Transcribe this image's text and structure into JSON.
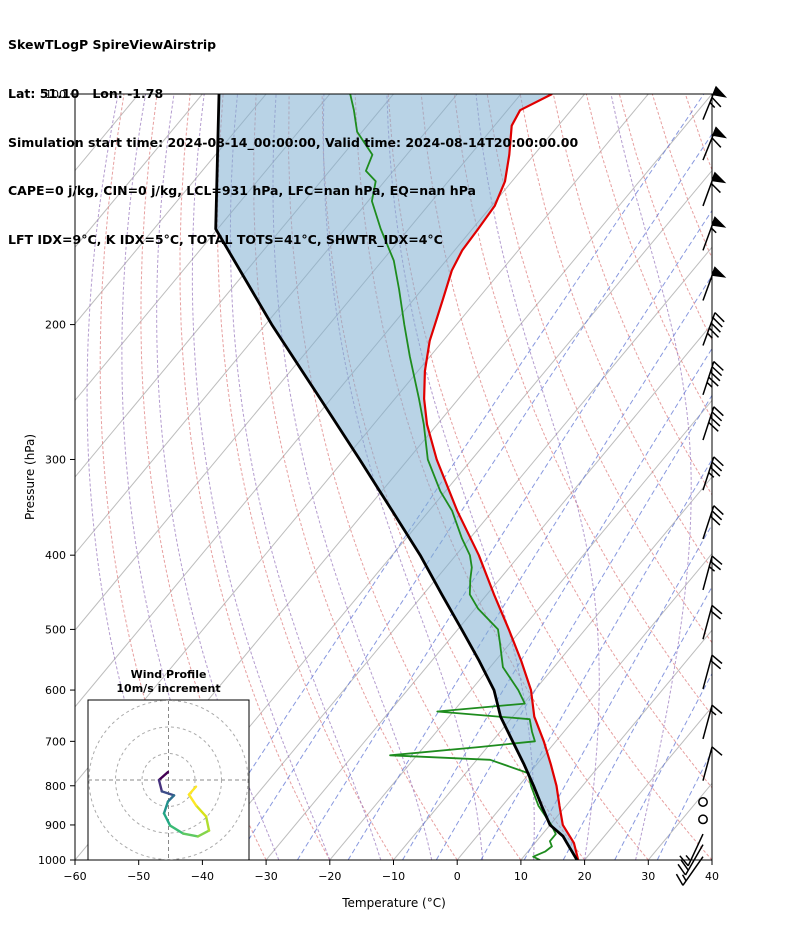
{
  "header": {
    "title": "SkewTLogP SpireViewAirstrip",
    "location": "Lat: 51.10   Lon: -1.78",
    "times": "Simulation start time: 2024-08-14_00:00:00, Valid time: 2024-08-14T20:00:00.00",
    "indices1": "CAPE=0 j/kg, CIN=0 j/kg, LCL=931 hPa, LFC=nan hPa, EQ=nan hPa",
    "indices2": "LFT IDX=9°C, K IDX=5°C, TOTAL TOTS=41°C, SHWTR_IDX=4°C"
  },
  "chart_data": {
    "type": "skewt-logp",
    "xlabel": "Temperature (°C)",
    "ylabel": "Pressure (hPa)",
    "xlim": [
      -60,
      40
    ],
    "pressure_lim": [
      100,
      1000
    ],
    "x_ticks": [
      -60,
      -50,
      -40,
      -30,
      -20,
      -10,
      0,
      10,
      20,
      30,
      40
    ],
    "p_ticks": [
      100,
      200,
      300,
      400,
      500,
      600,
      700,
      800,
      900,
      1000
    ],
    "skew": "45deg",
    "background": {
      "isotherm_color": "#bdbdbd",
      "isotherm_range": [
        -160,
        40
      ],
      "isotherm_step": 10,
      "dry_adiabat_color": "#df8080",
      "dry_adiabat_theta_c": [
        -40,
        180,
        10
      ],
      "moist_adiabat_color": "#9b7bbf",
      "moist_adiabat_t1000_c": [
        -44,
        -36,
        -28,
        -20,
        -12,
        -4,
        4,
        12,
        20,
        28
      ],
      "mixing_ratio_color": "#6b7fd7",
      "mixing_ratio_g_kg": [
        0.1,
        0.2,
        0.5,
        1,
        2,
        3,
        5,
        8,
        12,
        20,
        30
      ]
    },
    "series": {
      "temperature": {
        "name": "temperature",
        "color": "#e00000",
        "points": [
          [
            1000,
            19.0
          ],
          [
            950,
            16.1
          ],
          [
            900,
            12.0
          ],
          [
            850,
            9.0
          ],
          [
            800,
            5.9
          ],
          [
            750,
            2.2
          ],
          [
            700,
            -1.9
          ],
          [
            650,
            -6.6
          ],
          [
            600,
            -10.6
          ],
          [
            550,
            -15.9
          ],
          [
            500,
            -22.0
          ],
          [
            450,
            -28.9
          ],
          [
            400,
            -36.4
          ],
          [
            350,
            -45.6
          ],
          [
            300,
            -55.5
          ],
          [
            270,
            -61.6
          ],
          [
            250,
            -65.4
          ],
          [
            230,
            -68.9
          ],
          [
            210,
            -72.1
          ],
          [
            200,
            -73.4
          ],
          [
            185,
            -75.5
          ],
          [
            170,
            -77.8
          ],
          [
            160,
            -78.8
          ],
          [
            150,
            -79.1
          ],
          [
            140,
            -79.5
          ],
          [
            130,
            -81.1
          ],
          [
            120,
            -83.9
          ],
          [
            110,
            -87.3
          ],
          [
            105,
            -88.0
          ],
          [
            100,
            -85.1
          ]
        ]
      },
      "dewpoint": {
        "name": "dewpoint",
        "color": "#1e8c1e",
        "points": [
          [
            1000,
            13.0
          ],
          [
            990,
            11.5
          ],
          [
            975,
            12.7
          ],
          [
            960,
            13.1
          ],
          [
            945,
            12.1
          ],
          [
            925,
            12.1
          ],
          [
            900,
            10.2
          ],
          [
            850,
            5.7
          ],
          [
            800,
            1.9
          ],
          [
            770,
            -0.2
          ],
          [
            740,
            -7.9
          ],
          [
            730,
            -24.2
          ],
          [
            712,
            -11.2
          ],
          [
            700,
            -3.3
          ],
          [
            680,
            -5.0
          ],
          [
            655,
            -7.0
          ],
          [
            640,
            -22.5
          ],
          [
            625,
            -9.8
          ],
          [
            600,
            -12.6
          ],
          [
            560,
            -18.0
          ],
          [
            520,
            -21.7
          ],
          [
            500,
            -23.7
          ],
          [
            470,
            -29.5
          ],
          [
            450,
            -32.7
          ],
          [
            430,
            -34.6
          ],
          [
            415,
            -35.9
          ],
          [
            400,
            -37.8
          ],
          [
            380,
            -41.3
          ],
          [
            350,
            -46.4
          ],
          [
            330,
            -50.8
          ],
          [
            300,
            -56.9
          ],
          [
            270,
            -62.1
          ],
          [
            250,
            -66.2
          ],
          [
            220,
            -73.2
          ],
          [
            200,
            -78.2
          ],
          [
            180,
            -83.6
          ],
          [
            165,
            -88.2
          ],
          [
            150,
            -94.4
          ],
          [
            138,
            -99.4
          ],
          [
            130,
            -101.4
          ],
          [
            126,
            -104.3
          ],
          [
            120,
            -105.4
          ],
          [
            112,
            -110.8
          ],
          [
            105,
            -114.1
          ],
          [
            100,
            -116.8
          ]
        ]
      },
      "parcel": {
        "name": "parcel",
        "color": "#000000",
        "points": [
          [
            1000,
            18.8
          ],
          [
            950,
            15.0
          ],
          [
            931,
            13.5
          ],
          [
            900,
            10.0
          ],
          [
            850,
            6.2
          ],
          [
            800,
            2.3
          ],
          [
            750,
            -2.0
          ],
          [
            700,
            -6.8
          ],
          [
            650,
            -11.9
          ],
          [
            600,
            -16.4
          ],
          [
            550,
            -22.5
          ],
          [
            500,
            -29.4
          ],
          [
            450,
            -37.1
          ],
          [
            400,
            -45.6
          ],
          [
            350,
            -55.8
          ],
          [
            300,
            -67.6
          ],
          [
            250,
            -81.7
          ],
          [
            200,
            -99.0
          ],
          [
            150,
            -120.3
          ],
          [
            100,
            -137.4
          ]
        ]
      },
      "cape_fill_color": "#7fafd1"
    },
    "wind_barbs": {
      "color": "#000000",
      "levels": [
        {
          "p": 108,
          "kt": 65,
          "dir": 22
        },
        {
          "p": 122,
          "kt": 60,
          "dir": 22
        },
        {
          "p": 140,
          "kt": 60,
          "dir": 20
        },
        {
          "p": 160,
          "kt": 55,
          "dir": 20
        },
        {
          "p": 186,
          "kt": 50,
          "dir": 20
        },
        {
          "p": 213,
          "kt": 45,
          "dir": 20
        },
        {
          "p": 247,
          "kt": 45,
          "dir": 18
        },
        {
          "p": 283,
          "kt": 40,
          "dir": 18
        },
        {
          "p": 329,
          "kt": 35,
          "dir": 18
        },
        {
          "p": 381,
          "kt": 30,
          "dir": 18
        },
        {
          "p": 444,
          "kt": 25,
          "dir": 15
        },
        {
          "p": 515,
          "kt": 20,
          "dir": 15
        },
        {
          "p": 598,
          "kt": 20,
          "dir": 15
        },
        {
          "p": 695,
          "kt": 15,
          "dir": 15
        },
        {
          "p": 788,
          "kt": 10,
          "dir": 15
        },
        {
          "p": 840,
          "kt": 0,
          "dir": 0
        },
        {
          "p": 885,
          "kt": 0,
          "dir": 0
        },
        {
          "p": 925,
          "kt": 15,
          "dir": 205
        },
        {
          "p": 955,
          "kt": 20,
          "dir": 210
        },
        {
          "p": 990,
          "kt": 15,
          "dir": 215
        }
      ]
    },
    "hodograph": {
      "title": "Wind Profile",
      "subtitle": "10m/s increment",
      "rings_ms": [
        10,
        20,
        30
      ],
      "trace": [
        {
          "u": -0.2,
          "v": 3.0,
          "color": "#440154"
        },
        {
          "u": -3.6,
          "v": 0.0,
          "color": "#46327e"
        },
        {
          "u": -2.5,
          "v": -4.3,
          "color": "#3d4e8a"
        },
        {
          "u": 2.1,
          "v": -5.8,
          "color": "#2e6f8e"
        },
        {
          "u": -0.2,
          "v": -8.1,
          "color": "#21918c"
        },
        {
          "u": -1.7,
          "v": -12.6,
          "color": "#22a884"
        },
        {
          "u": 0.6,
          "v": -17.2,
          "color": "#3bbb75"
        },
        {
          "u": 5.5,
          "v": -20.2,
          "color": "#5ec962"
        },
        {
          "u": 11.1,
          "v": -21.3,
          "color": "#84d44b"
        },
        {
          "u": 15.3,
          "v": -19.1,
          "color": "#b0dd2f"
        },
        {
          "u": 14.2,
          "v": -13.8,
          "color": "#d8e219"
        },
        {
          "u": 10.4,
          "v": -9.6,
          "color": "#fde725"
        },
        {
          "u": 7.7,
          "v": -5.5,
          "color": "#fde725"
        },
        {
          "u": 10.4,
          "v": -2.5,
          "color": "#fde725"
        }
      ]
    }
  }
}
